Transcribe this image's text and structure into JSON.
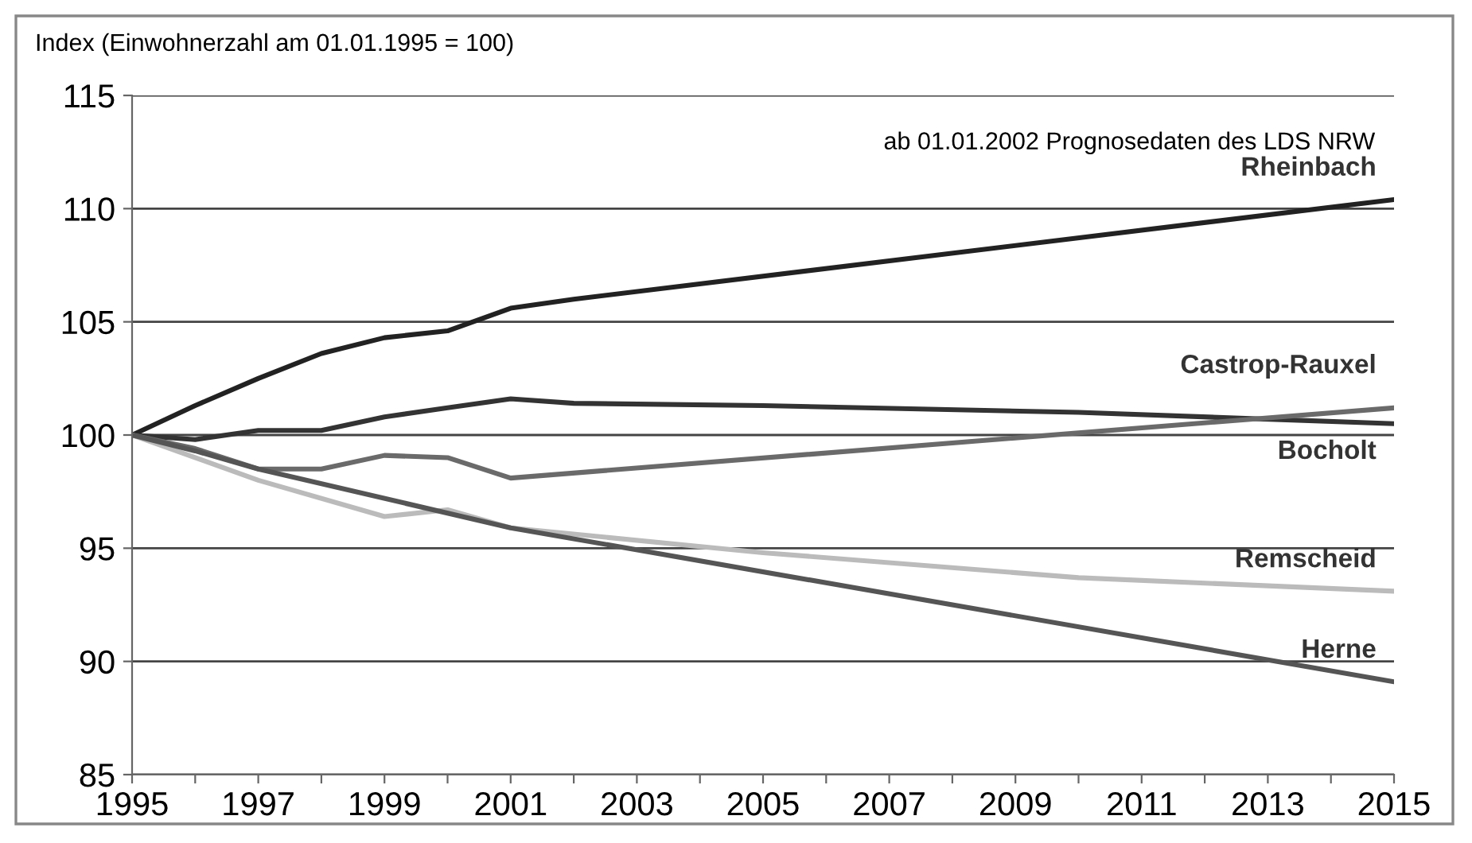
{
  "chart_data": {
    "type": "line",
    "ylabel": "Index (Einwohnerzahl am 01.01.1995 = 100)",
    "annotations": [
      "ab 01.01.2002 Prognosedaten des LDS NRW"
    ],
    "xlim": [
      1995,
      2015
    ],
    "ylim": [
      85,
      115
    ],
    "xticks": [
      1995,
      {
        "value": 1996,
        "label": null
      },
      1997,
      {
        "value": 1998,
        "label": null
      },
      1999,
      {
        "value": 2000,
        "label": null
      },
      2001,
      {
        "value": 2002,
        "label": null
      },
      2003,
      {
        "value": 2004,
        "label": null
      },
      2005,
      {
        "value": 2006,
        "label": null
      },
      2007,
      {
        "value": 2008,
        "label": null
      },
      2009,
      {
        "value": 2010,
        "label": null
      },
      2011,
      {
        "value": 2012,
        "label": null
      },
      2013,
      {
        "value": 2014,
        "label": null
      },
      2015
    ],
    "yticks": [
      85,
      90,
      95,
      100,
      105,
      110,
      115
    ],
    "grid": "y",
    "legend": false,
    "marker": "none",
    "line_style": "solid",
    "series": [
      {
        "name": "Rheinbach",
        "color": "#222222",
        "x": [
          1995,
          1996,
          1997,
          1998,
          1999,
          2000,
          2001,
          2002,
          2015
        ],
        "values": [
          100,
          101.3,
          102.5,
          103.6,
          104.3,
          104.6,
          105.6,
          106.0,
          110.4
        ]
      },
      {
        "name": "Castrop-Rauxel",
        "color": "#333333",
        "x": [
          1995,
          1996,
          1997,
          1998,
          1999,
          2000,
          2001,
          2002,
          2005,
          2010,
          2015
        ],
        "values": [
          100,
          99.8,
          100.2,
          100.2,
          100.8,
          101.2,
          101.6,
          101.4,
          101.3,
          101.0,
          100.5
        ]
      },
      {
        "name": "Bocholt",
        "color": "#6a6a6a",
        "x": [
          1995,
          1996,
          1997,
          1998,
          1999,
          2000,
          2001,
          2015
        ],
        "values": [
          100,
          99.4,
          98.5,
          98.5,
          99.1,
          99.0,
          98.1,
          101.2
        ]
      },
      {
        "name": "Remscheid",
        "color": "#bbbbbb",
        "x": [
          1995,
          1997,
          1999,
          2000,
          2001,
          2005,
          2010,
          2015
        ],
        "values": [
          100,
          98.0,
          96.4,
          96.7,
          95.9,
          94.8,
          93.7,
          93.1
        ]
      },
      {
        "name": "Herne",
        "color": "#555555",
        "x": [
          1995,
          1996,
          1997,
          2001,
          2015
        ],
        "values": [
          100,
          99.3,
          98.5,
          95.9,
          89.1
        ]
      }
    ]
  }
}
